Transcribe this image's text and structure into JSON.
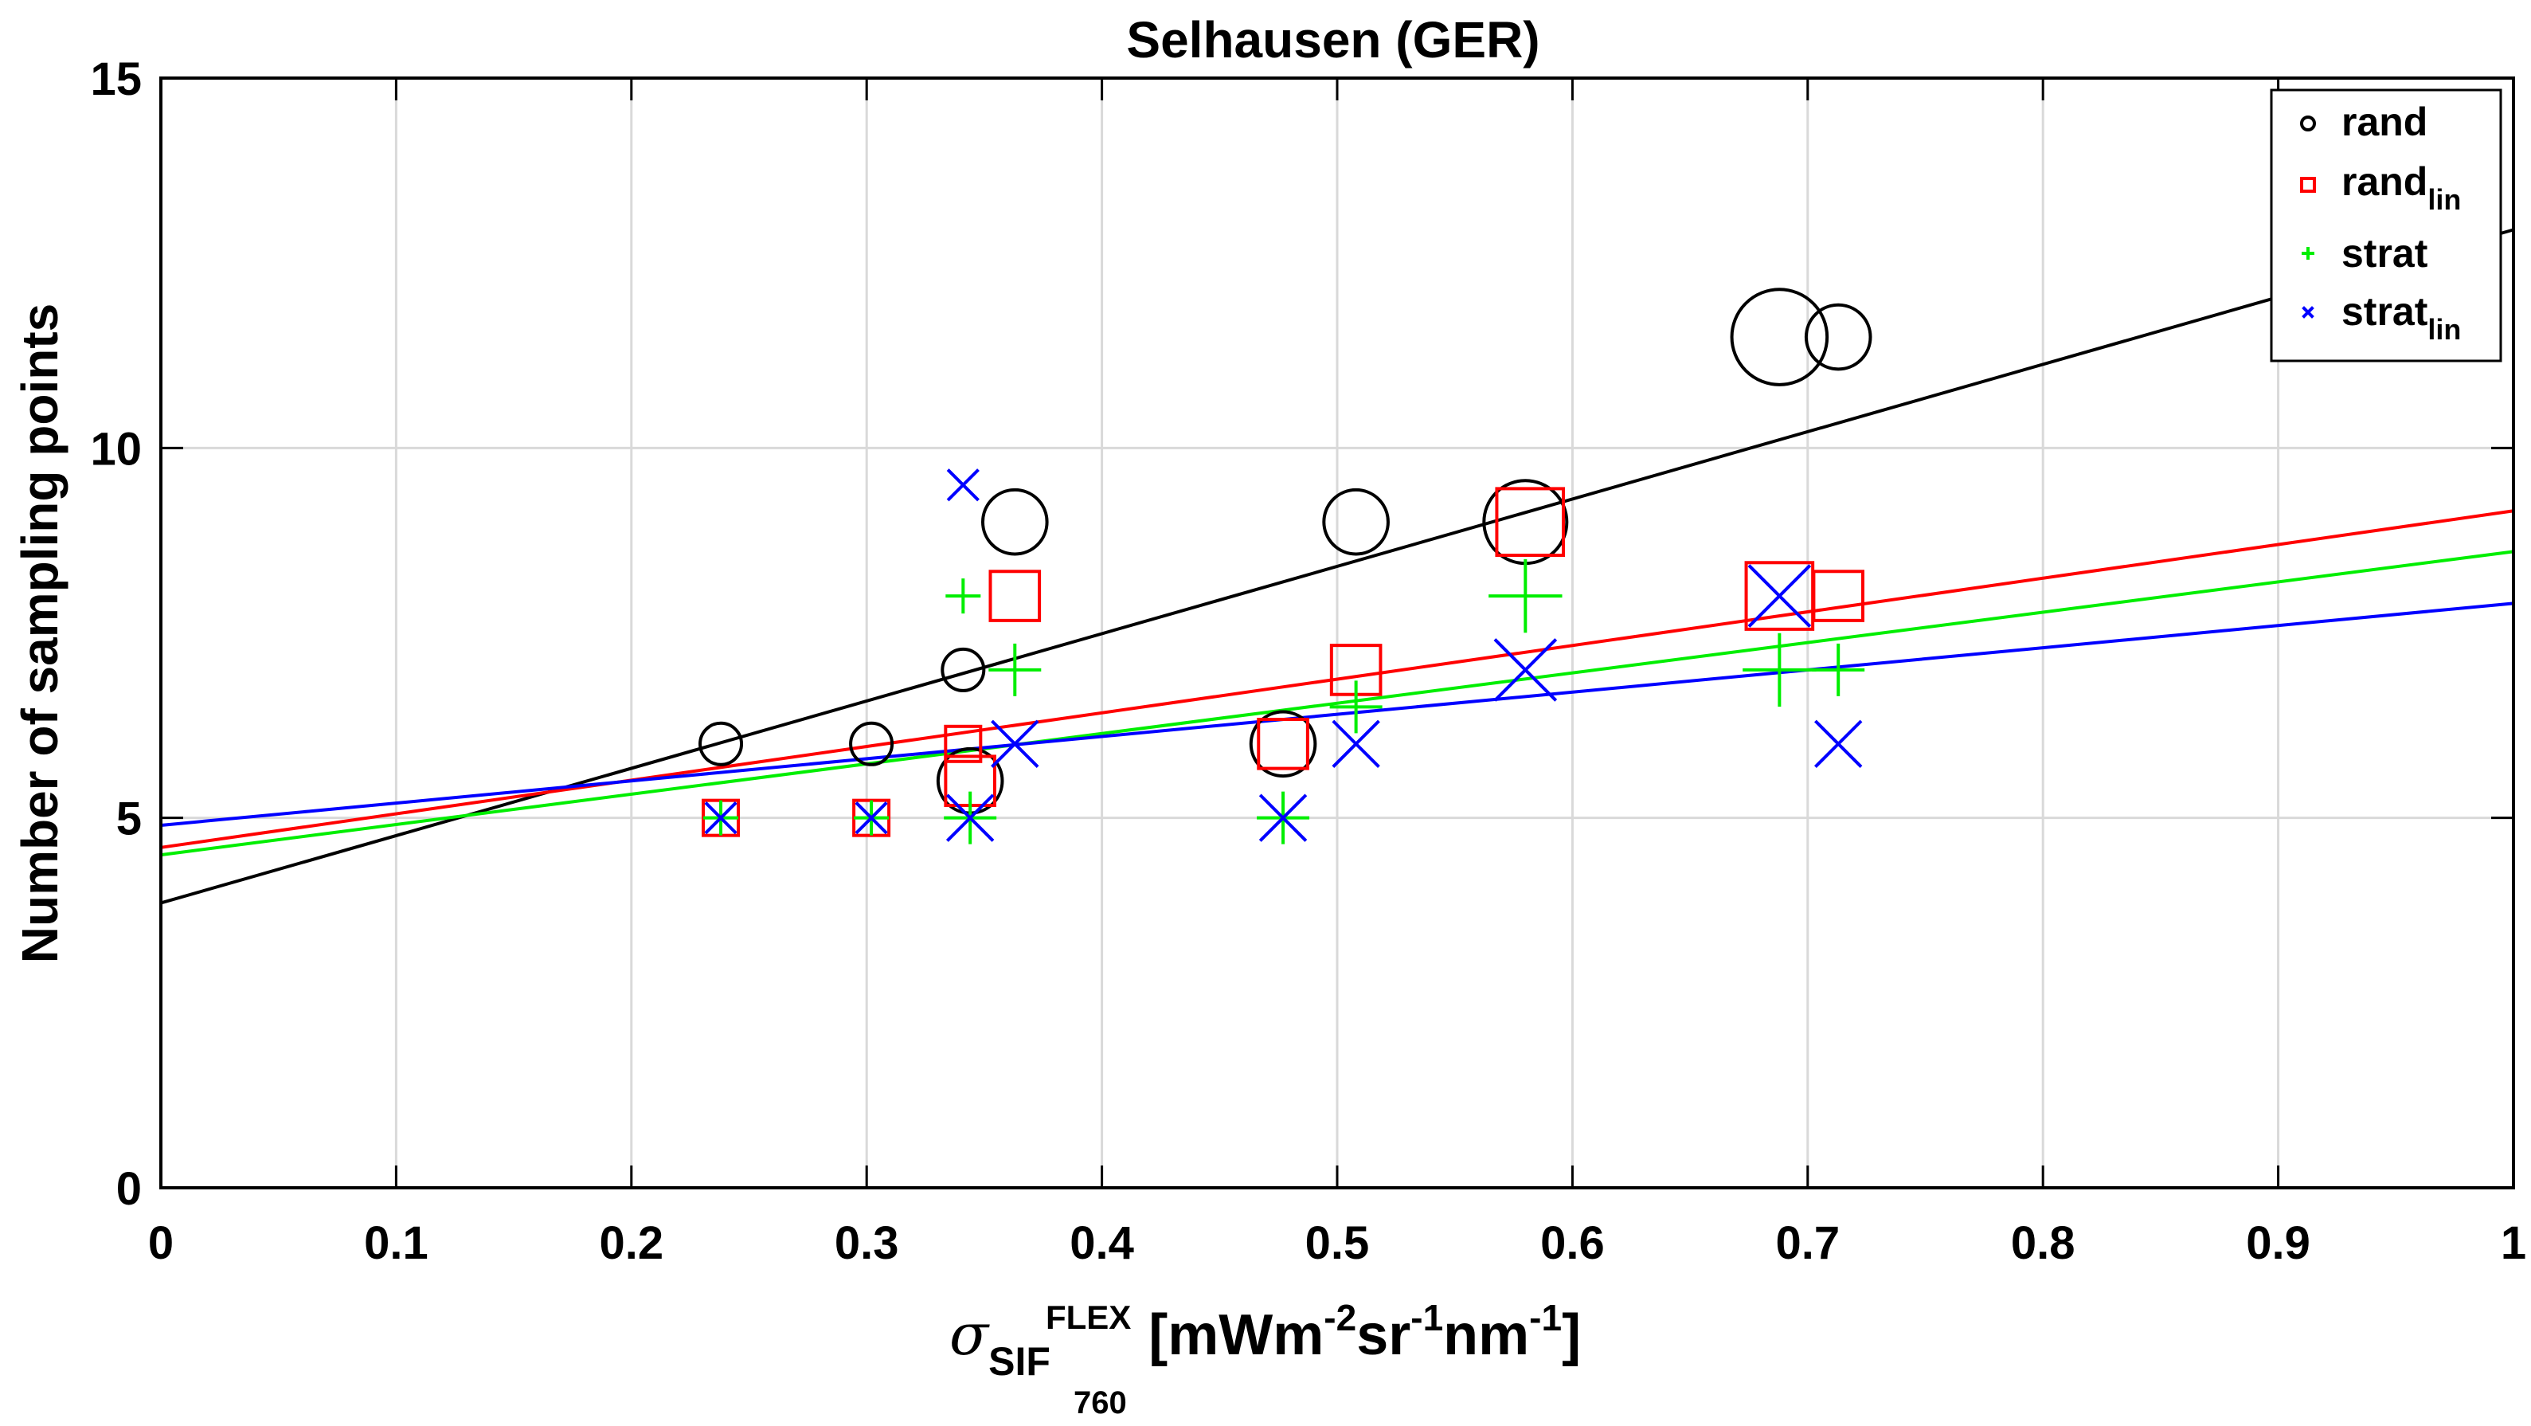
{
  "chart_data": {
    "type": "scatter",
    "title": "Selhausen (GER)",
    "xlabel": {
      "sigma": "σ",
      "sub": "SIF",
      "sub2": "760",
      "sup": "FLEX",
      "text1": "[mWm",
      "exp1": "-2",
      "text2": "sr",
      "exp2": "-1",
      "text3": "nm",
      "exp3": "-1",
      "text4": "]"
    },
    "ylabel": "Number of sampling points",
    "xlim": [
      0,
      1
    ],
    "ylim": [
      0,
      15
    ],
    "xticks": [
      "0",
      "0.1",
      "0.2",
      "0.3",
      "0.4",
      "0.5",
      "0.6",
      "0.7",
      "0.8",
      "0.9",
      "1"
    ],
    "yticks": [
      "0",
      "5",
      "10",
      "15"
    ],
    "grid": true,
    "legend_position": "top-right",
    "series": [
      {
        "name": "rand",
        "label_main": "rand",
        "label_sub": "",
        "marker": "circle",
        "color": "#000000",
        "points": [
          {
            "x": 0.238,
            "y": 6,
            "size": 1
          },
          {
            "x": 0.302,
            "y": 6,
            "size": 1
          },
          {
            "x": 0.341,
            "y": 7,
            "size": 1
          },
          {
            "x": 0.344,
            "y": 5.5,
            "size": 1.55
          },
          {
            "x": 0.363,
            "y": 9,
            "size": 1.55
          },
          {
            "x": 0.477,
            "y": 6,
            "size": 1.55
          },
          {
            "x": 0.508,
            "y": 9,
            "size": 1.55
          },
          {
            "x": 0.58,
            "y": 9,
            "size": 2.0
          },
          {
            "x": 0.688,
            "y": 11.5,
            "size": 2.3
          },
          {
            "x": 0.713,
            "y": 11.5,
            "size": 1.55
          }
        ],
        "fit": {
          "intercept": 3.85,
          "slope": 9.1
        }
      },
      {
        "name": "rand_lin",
        "label_main": "rand",
        "label_sub": "lin",
        "marker": "square",
        "color": "#ff0000",
        "points": [
          {
            "x": 0.238,
            "y": 5,
            "size": 1
          },
          {
            "x": 0.302,
            "y": 5,
            "size": 1
          },
          {
            "x": 0.341,
            "y": 6,
            "size": 1
          },
          {
            "x": 0.344,
            "y": 5.5,
            "size": 1.4
          },
          {
            "x": 0.363,
            "y": 8,
            "size": 1.4
          },
          {
            "x": 0.477,
            "y": 6,
            "size": 1.4
          },
          {
            "x": 0.508,
            "y": 7,
            "size": 1.4
          },
          {
            "x": 0.582,
            "y": 9,
            "size": 1.9
          },
          {
            "x": 0.688,
            "y": 8,
            "size": 1.9
          },
          {
            "x": 0.713,
            "y": 8,
            "size": 1.4
          }
        ],
        "fit": {
          "intercept": 4.6,
          "slope": 4.55
        }
      },
      {
        "name": "strat",
        "label_main": "strat",
        "label_sub": "",
        "marker": "plus",
        "color": "#00ee00",
        "points": [
          {
            "x": 0.238,
            "y": 5,
            "size": 1
          },
          {
            "x": 0.302,
            "y": 5,
            "size": 1
          },
          {
            "x": 0.341,
            "y": 8,
            "size": 1
          },
          {
            "x": 0.344,
            "y": 5,
            "size": 1.5
          },
          {
            "x": 0.363,
            "y": 7,
            "size": 1.5
          },
          {
            "x": 0.477,
            "y": 5,
            "size": 1.5
          },
          {
            "x": 0.508,
            "y": 6.5,
            "size": 1.5
          },
          {
            "x": 0.58,
            "y": 8,
            "size": 2.1
          },
          {
            "x": 0.688,
            "y": 7,
            "size": 2.1
          },
          {
            "x": 0.713,
            "y": 7,
            "size": 1.5
          }
        ],
        "fit": {
          "intercept": 4.5,
          "slope": 4.1
        }
      },
      {
        "name": "strat_lin",
        "label_main": "strat",
        "label_sub": "lin",
        "marker": "x",
        "color": "#0000ff",
        "points": [
          {
            "x": 0.238,
            "y": 5,
            "size": 1
          },
          {
            "x": 0.302,
            "y": 5,
            "size": 1
          },
          {
            "x": 0.341,
            "y": 9.5,
            "size": 1
          },
          {
            "x": 0.344,
            "y": 5,
            "size": 1.5
          },
          {
            "x": 0.363,
            "y": 6,
            "size": 1.5
          },
          {
            "x": 0.477,
            "y": 5,
            "size": 1.5
          },
          {
            "x": 0.508,
            "y": 6,
            "size": 1.5
          },
          {
            "x": 0.58,
            "y": 7,
            "size": 2.0
          },
          {
            "x": 0.688,
            "y": 8,
            "size": 2.0
          },
          {
            "x": 0.713,
            "y": 6,
            "size": 1.5
          }
        ],
        "fit": {
          "intercept": 4.9,
          "slope": 3.0
        }
      }
    ]
  }
}
